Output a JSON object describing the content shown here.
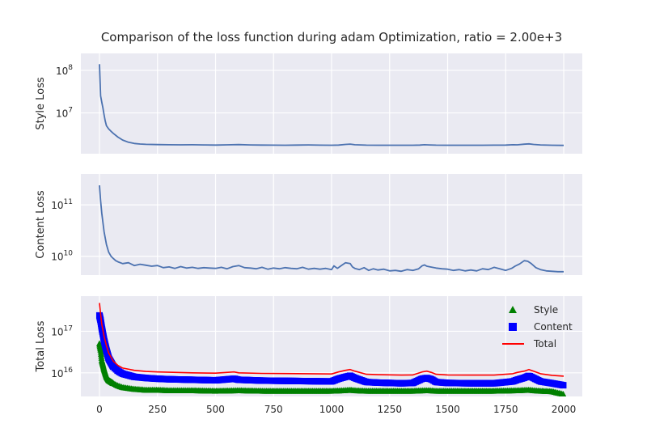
{
  "chart_data": {
    "type": "line",
    "title": "Comparison of the loss function during adam Optimization, ratio = 2.00e+3",
    "xlabel": "",
    "x_ticks": [
      "0",
      "250",
      "500",
      "750",
      "1000",
      "1250",
      "1500",
      "1750",
      "2000"
    ],
    "xlim": [
      -80,
      2080
    ],
    "grid": true,
    "legend_placement": "top-right",
    "colors": {
      "background": "#eaeaf2",
      "grid": "#ffffff",
      "line": "#4c72b0",
      "style": "#008000",
      "content": "#0000ff",
      "total": "#ff0000"
    },
    "panels": [
      {
        "ylabel": "Style Loss",
        "yscale": "log",
        "ylim": [
          1100000,
          250000000
        ],
        "y_ticks": [
          {
            "value": 10000000,
            "base": "10",
            "exp": "7"
          },
          {
            "value": 100000000,
            "base": "10",
            "exp": "8"
          }
        ],
        "series": [
          {
            "style": "line",
            "x": [
              0,
              5,
              10,
              15,
              20,
              25,
              30,
              40,
              50,
              60,
              80,
              100,
              125,
              150,
              175,
              200,
              250,
              300,
              350,
              400,
              450,
              500,
              550,
              600,
              650,
              700,
              750,
              800,
              850,
              900,
              950,
              1000,
              1030,
              1060,
              1080,
              1100,
              1150,
              1200,
              1250,
              1300,
              1350,
              1380,
              1400,
              1420,
              1450,
              1500,
              1550,
              1600,
              1650,
              1700,
              1750,
              1780,
              1800,
              1830,
              1850,
              1870,
              1900,
              1950,
              2000
            ],
            "y": [
              140000000,
              25000000,
              18000000,
              13000000,
              9000000,
              6500000,
              5000000,
              4200000,
              3700000,
              3300000,
              2700000,
              2300000,
              2050000,
              1920000,
              1860000,
              1830000,
              1800000,
              1790000,
              1780000,
              1785000,
              1770000,
              1760000,
              1780000,
              1800000,
              1770000,
              1760000,
              1750000,
              1745000,
              1760000,
              1770000,
              1750000,
              1740000,
              1760000,
              1820000,
              1850000,
              1790000,
              1750000,
              1740000,
              1745000,
              1740000,
              1740000,
              1760000,
              1790000,
              1770000,
              1750000,
              1740000,
              1745000,
              1740000,
              1740000,
              1750000,
              1760000,
              1790000,
              1780000,
              1840000,
              1880000,
              1820000,
              1770000,
              1740000,
              1730000
            ]
          }
        ]
      },
      {
        "ylabel": "Content Loss",
        "yscale": "log",
        "ylim": [
          4300000000,
          400000000000
        ],
        "y_ticks": [
          {
            "value": 10000000000,
            "base": "10",
            "exp": "10"
          },
          {
            "value": 100000000000,
            "base": "10",
            "exp": "11"
          }
        ],
        "series": [
          {
            "style": "line",
            "x": [
              0,
              5,
              10,
              15,
              20,
              30,
              40,
              50,
              60,
              70,
              80,
              100,
              125,
              150,
              175,
              200,
              225,
              250,
              275,
              300,
              325,
              350,
              375,
              400,
              425,
              450,
              475,
              500,
              525,
              550,
              575,
              600,
              625,
              650,
              675,
              700,
              725,
              750,
              775,
              800,
              825,
              850,
              875,
              900,
              925,
              950,
              975,
              1000,
              1010,
              1025,
              1040,
              1060,
              1080,
              1090,
              1100,
              1120,
              1140,
              1160,
              1180,
              1200,
              1225,
              1250,
              1275,
              1300,
              1325,
              1350,
              1375,
              1390,
              1400,
              1410,
              1425,
              1450,
              1475,
              1500,
              1525,
              1550,
              1575,
              1600,
              1625,
              1650,
              1675,
              1700,
              1725,
              1750,
              1775,
              1790,
              1810,
              1830,
              1845,
              1860,
              1880,
              1900,
              1925,
              1950,
              1975,
              2000
            ],
            "y": [
              240000000000,
              120000000000,
              70000000000,
              45000000000,
              30000000000,
              17000000000,
              12000000000,
              10000000000,
              9000000000,
              8200000000,
              7800000000,
              7200000000,
              7500000000,
              6600000000,
              7000000000,
              6700000000,
              6400000000,
              6600000000,
              6000000000,
              6200000000,
              5800000000,
              6300000000,
              5900000000,
              6100000000,
              5800000000,
              6000000000,
              5900000000,
              5800000000,
              6100000000,
              5700000000,
              6300000000,
              6600000000,
              6000000000,
              5900000000,
              5700000000,
              6100000000,
              5600000000,
              5900000000,
              5700000000,
              6000000000,
              5800000000,
              5700000000,
              6100000000,
              5600000000,
              5800000000,
              5600000000,
              5800000000,
              5500000000,
              6500000000,
              5800000000,
              6500000000,
              7500000000,
              7200000000,
              6200000000,
              5800000000,
              5500000000,
              6000000000,
              5300000000,
              5700000000,
              5400000000,
              5600000000,
              5200000000,
              5300000000,
              5100000000,
              5500000000,
              5300000000,
              5700000000,
              6500000000,
              6800000000,
              6400000000,
              6200000000,
              5900000000,
              5700000000,
              5600000000,
              5300000000,
              5500000000,
              5200000000,
              5400000000,
              5200000000,
              5700000000,
              5500000000,
              6100000000,
              5700000000,
              5300000000,
              5800000000,
              6400000000,
              7100000000,
              8200000000,
              8000000000,
              7200000000,
              6000000000,
              5500000000,
              5200000000,
              5100000000,
              5000000000,
              5000000000
            ]
          }
        ]
      },
      {
        "ylabel": "Total Loss",
        "yscale": "log",
        "ylim": [
          2700000000000000,
          700000000000000000
        ],
        "y_ticks": [
          {
            "value": 10000000000000000,
            "base": "10",
            "exp": "16"
          },
          {
            "value": 100000000000000000,
            "base": "10",
            "exp": "17"
          }
        ],
        "series": [
          {
            "name": "Style",
            "style": "triangle",
            "color": "#008000",
            "x": [
              0,
              5,
              10,
              20,
              30,
              40,
              60,
              80,
              100,
              150,
              200,
              250,
              300,
              400,
              500,
              600,
              700,
              800,
              900,
              1000,
              1050,
              1080,
              1100,
              1150,
              1200,
              1300,
              1350,
              1400,
              1420,
              1450,
              1500,
              1600,
              1700,
              1800,
              1850,
              1870,
              1900,
              1950,
              2000
            ],
            "y": [
              50000000000000000,
              35000000000000000,
              20000000000000000,
              12000000000000000,
              8000000000000000,
              6500000000000000,
              5500000000000000,
              4800000000000000,
              4400000000000000,
              4000000000000000,
              3800000000000000,
              3800000000000000,
              3700000000000000,
              3700000000000000,
              3600000000000000,
              3700000000000000,
              3600000000000000,
              3600000000000000,
              3600000000000000,
              3600000000000000,
              3700000000000000,
              3800000000000000,
              3700000000000000,
              3600000000000000,
              3600000000000000,
              3600000000000000,
              3600000000000000,
              3700000000000000,
              3700000000000000,
              3600000000000000,
              3600000000000000,
              3600000000000000,
              3600000000000000,
              3700000000000000,
              3800000000000000,
              3700000000000000,
              3600000000000000,
              3500000000000000,
              3000000000000000
            ]
          },
          {
            "name": "Content",
            "style": "square",
            "color": "#0000ff",
            "x": [
              0,
              5,
              10,
              20,
              30,
              40,
              60,
              80,
              100,
              150,
              200,
              250,
              300,
              400,
              500,
              580,
              600,
              700,
              800,
              900,
              1000,
              1030,
              1060,
              1080,
              1100,
              1150,
              1200,
              1300,
              1350,
              1390,
              1410,
              1430,
              1450,
              1500,
              1600,
              1700,
              1780,
              1800,
              1830,
              1850,
              1870,
              1900,
              1950,
              2000
            ],
            "y": [
              240000000000000000,
              180000000000000000,
              120000000000000000,
              60000000000000000,
              35000000000000000,
              22000000000000000,
              14000000000000000,
              11000000000000000,
              9500000000000000,
              8000000000000000,
              7500000000000000,
              7200000000000000,
              7000000000000000,
              6800000000000000,
              6600000000000000,
              7200000000000000,
              6800000000000000,
              6500000000000000,
              6400000000000000,
              6300000000000000,
              6200000000000000,
              7200000000000000,
              8000000000000000,
              8500000000000000,
              7500000000000000,
              6000000000000000,
              5800000000000000,
              5600000000000000,
              5700000000000000,
              7200000000000000,
              7500000000000000,
              7000000000000000,
              6000000000000000,
              5700000000000000,
              5600000000000000,
              5600000000000000,
              6200000000000000,
              6800000000000000,
              7600000000000000,
              8500000000000000,
              7500000000000000,
              6200000000000000,
              5600000000000000,
              5000000000000000
            ]
          },
          {
            "name": "Total",
            "style": "line",
            "color": "#ff0000",
            "x": [
              0,
              5,
              10,
              20,
              30,
              40,
              60,
              80,
              100,
              150,
              200,
              250,
              300,
              400,
              500,
              580,
              600,
              700,
              800,
              900,
              1000,
              1030,
              1060,
              1080,
              1100,
              1150,
              1200,
              1300,
              1350,
              1390,
              1410,
              1430,
              1450,
              1500,
              1600,
              1700,
              1780,
              1800,
              1830,
              1850,
              1870,
              1900,
              1950,
              2000
            ],
            "y": [
              480000000000000000,
              260000000000000000,
              150000000000000000,
              75000000000000000,
              45000000000000000,
              30000000000000000,
              19000000000000000,
              15000000000000000,
              13000000000000000,
              11500000000000000,
              10800000000000000,
              10500000000000000,
              10300000000000000,
              10000000000000000,
              9800000000000000,
              10500000000000000,
              10000000000000000,
              9700000000000000,
              9600000000000000,
              9500000000000000,
              9400000000000000,
              10500000000000000,
              11500000000000000,
              12000000000000000,
              11000000000000000,
              9200000000000000,
              9000000000000000,
              8800000000000000,
              8900000000000000,
              10500000000000000,
              11000000000000000,
              10200000000000000,
              9200000000000000,
              8900000000000000,
              8800000000000000,
              8800000000000000,
              9500000000000000,
              10200000000000000,
              11000000000000000,
              12000000000000000,
              11000000000000000,
              9500000000000000,
              8700000000000000,
              8300000000000000
            ]
          }
        ]
      }
    ]
  }
}
